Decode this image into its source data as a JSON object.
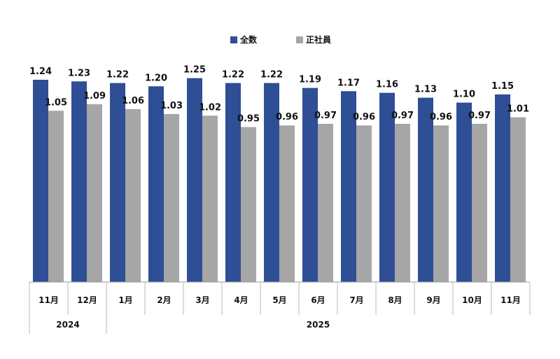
{
  "chart_data": {
    "type": "bar",
    "categories": [
      "11月",
      "12月",
      "1月",
      "2月",
      "3月",
      "4月",
      "5月",
      "6月",
      "7月",
      "8月",
      "9月",
      "10月",
      "11月"
    ],
    "year_groups": [
      {
        "label": "2024",
        "span": 2
      },
      {
        "label": "2025",
        "span": 11
      }
    ],
    "series": [
      {
        "name": "全数",
        "color": "#2E4E95",
        "values": [
          1.24,
          1.23,
          1.22,
          1.2,
          1.25,
          1.22,
          1.22,
          1.19,
          1.17,
          1.16,
          1.13,
          1.1,
          1.15
        ]
      },
      {
        "name": "正社員",
        "color": "#A6A6A6",
        "values": [
          1.05,
          1.09,
          1.06,
          1.03,
          1.02,
          0.95,
          0.96,
          0.97,
          0.96,
          0.97,
          0.96,
          0.97,
          1.01
        ]
      }
    ],
    "ylim": [
      0,
      1.3
    ],
    "grid": false,
    "legend_position": "top-center",
    "data_labels": true
  }
}
